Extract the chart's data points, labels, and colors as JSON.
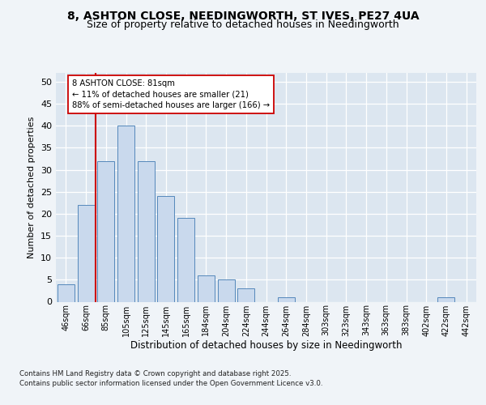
{
  "title1": "8, ASHTON CLOSE, NEEDINGWORTH, ST IVES, PE27 4UA",
  "title2": "Size of property relative to detached houses in Needingworth",
  "xlabel": "Distribution of detached houses by size in Needingworth",
  "ylabel": "Number of detached properties",
  "bar_labels": [
    "46sqm",
    "66sqm",
    "85sqm",
    "105sqm",
    "125sqm",
    "145sqm",
    "165sqm",
    "184sqm",
    "204sqm",
    "224sqm",
    "244sqm",
    "264sqm",
    "284sqm",
    "303sqm",
    "323sqm",
    "343sqm",
    "363sqm",
    "383sqm",
    "402sqm",
    "422sqm",
    "442sqm"
  ],
  "bar_values": [
    4,
    22,
    32,
    40,
    32,
    24,
    19,
    6,
    5,
    3,
    0,
    1,
    0,
    0,
    0,
    0,
    0,
    0,
    0,
    1,
    0
  ],
  "bar_color": "#c9d9ed",
  "bar_edge_color": "#5588bb",
  "vline_x": 1.5,
  "vline_color": "#cc0000",
  "annotation_text": "8 ASHTON CLOSE: 81sqm\n← 11% of detached houses are smaller (21)\n88% of semi-detached houses are larger (166) →",
  "annotation_box_color": "#ffffff",
  "annotation_box_edge": "#cc0000",
  "ylim": [
    0,
    52
  ],
  "yticks": [
    0,
    5,
    10,
    15,
    20,
    25,
    30,
    35,
    40,
    45,
    50
  ],
  "bg_color": "#f0f4f8",
  "plot_bg_color": "#dce6f0",
  "footer_line1": "Contains HM Land Registry data © Crown copyright and database right 2025.",
  "footer_line2": "Contains public sector information licensed under the Open Government Licence v3.0.",
  "title_fontsize": 10,
  "subtitle_fontsize": 9,
  "bar_width": 0.85
}
